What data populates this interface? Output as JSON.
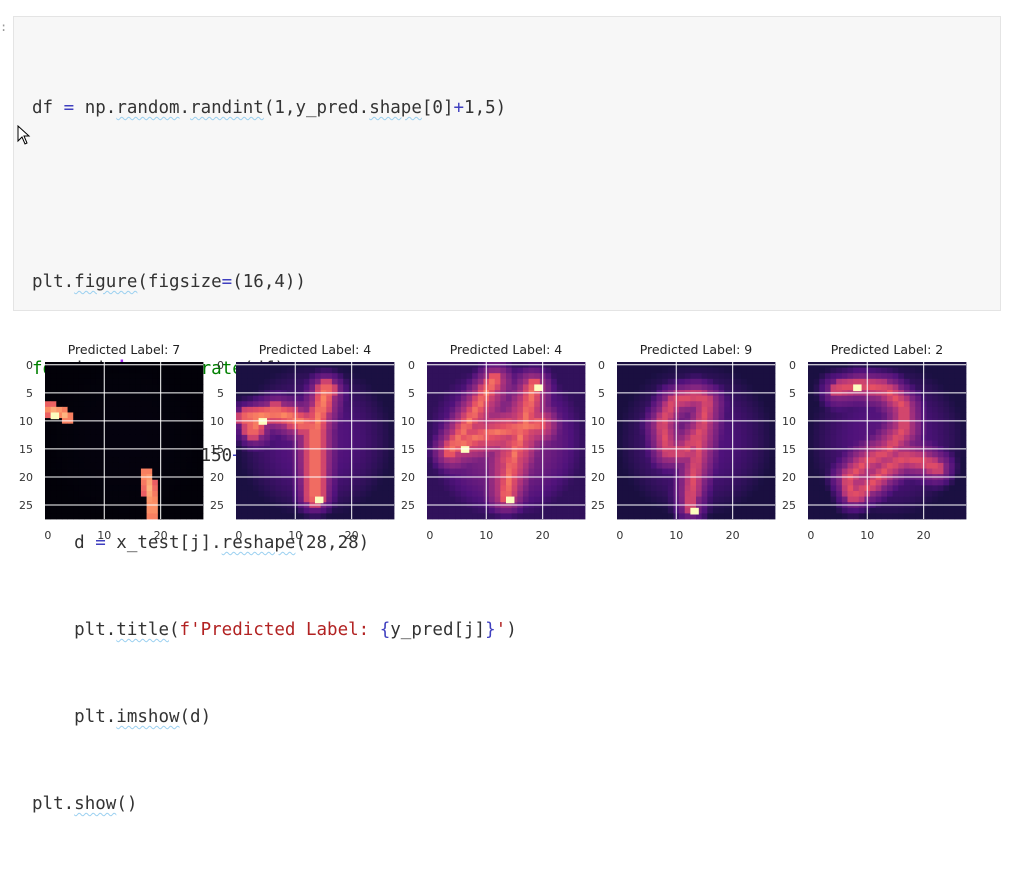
{
  "notebook": {
    "prompt_marker": ":",
    "code_cell": {
      "lines": [
        "df = np.random.randint(1,y_pred.shape[0]+1,5)",
        "",
        "plt.figure(figsize=(16,4))",
        "for i,j in enumerate(df):",
        "    plt.subplot(150+i+1)",
        "    d = x_test[j].reshape(28,28)",
        "    plt.title(f'Predicted Label: {y_pred[j]}')",
        "    plt.imshow(d)",
        "plt.show()"
      ]
    }
  },
  "output": {
    "panels": [
      {
        "title": "Predicted Label: 7",
        "digit": "7"
      },
      {
        "title": "Predicted Label: 4",
        "digit": "4"
      },
      {
        "title": "Predicted Label: 4",
        "digit": "4b"
      },
      {
        "title": "Predicted Label: 9",
        "digit": "9"
      },
      {
        "title": "Predicted Label: 2",
        "digit": "2"
      }
    ],
    "y_ticks": [
      "0",
      "5",
      "10",
      "15",
      "20",
      "25"
    ],
    "x_ticks": [
      "0",
      "10",
      "20"
    ],
    "colormap": "magma"
  }
}
